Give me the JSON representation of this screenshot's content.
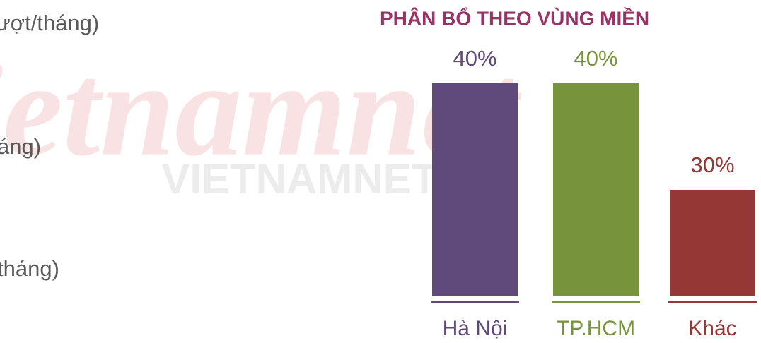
{
  "side_texts": [
    "ượt/tháng)",
    "áng)",
    "tháng)"
  ],
  "watermark": {
    "logo": "vietnamnet",
    "text": "VIETNAMNET.VN"
  },
  "chart_data": {
    "type": "bar",
    "title": "PHÂN BỔ  THEO VÙNG MIỀN",
    "categories": [
      "Hà Nội",
      "TP.HCM",
      "Khác"
    ],
    "values": [
      40,
      40,
      30
    ],
    "value_labels": [
      "40%",
      "40%",
      "30%"
    ],
    "colors": [
      "#604a7b",
      "#77933c",
      "#953735"
    ],
    "ylim": [
      20,
      40
    ]
  }
}
